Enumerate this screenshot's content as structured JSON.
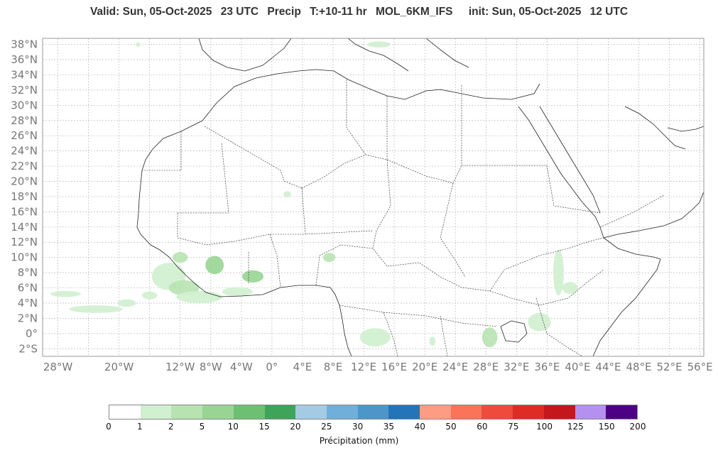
{
  "header": {
    "valid": "Valid: Sun, 05-Oct-2025",
    "valid_time": "23 UTC",
    "field": "Precip",
    "lead": "T:+10-11 hr",
    "model": "MOL_6KM_IFS",
    "init": "init: Sun, 05-Oct-2025",
    "init_time": "12 UTC"
  },
  "map": {
    "lat_labels": [
      "38°N",
      "36°N",
      "34°N",
      "32°N",
      "30°N",
      "28°N",
      "26°N",
      "24°N",
      "22°N",
      "20°N",
      "18°N",
      "16°N",
      "14°N",
      "12°N",
      "10°N",
      "8°N",
      "6°N",
      "4°N",
      "2°N",
      "0°",
      "2°S"
    ],
    "lon_labels": [
      "28°W",
      "20°W",
      "12°W",
      "8°W",
      "4°W",
      "0°",
      "4°E",
      "8°E",
      "12°E",
      "16°E",
      "20°E",
      "24°E",
      "28°E",
      "32°E",
      "36°E",
      "40°E",
      "44°E",
      "48°E",
      "52°E",
      "56°E"
    ],
    "lat_values": [
      38,
      36,
      34,
      32,
      30,
      28,
      26,
      24,
      22,
      20,
      18,
      16,
      14,
      12,
      10,
      8,
      6,
      4,
      2,
      0,
      -2
    ],
    "lon_values": [
      -28,
      -20,
      -12,
      -8,
      -4,
      0,
      4,
      8,
      12,
      16,
      20,
      24,
      28,
      32,
      36,
      40,
      44,
      48,
      52,
      56
    ],
    "extent": {
      "lon_min": -30,
      "lon_max": 56.5,
      "lat_min": -3,
      "lat_max": 38.8
    },
    "precip_areas": [
      {
        "lon": -13.5,
        "lat": 7.5,
        "rx": 2.2,
        "ry": 1.8,
        "level": 1
      },
      {
        "lon": -11.5,
        "lat": 6.0,
        "rx": 2.0,
        "ry": 1.0,
        "level": 2
      },
      {
        "lon": -9.5,
        "lat": 4.8,
        "rx": 3.0,
        "ry": 0.8,
        "level": 1
      },
      {
        "lon": -7.5,
        "lat": 9.0,
        "rx": 1.2,
        "ry": 1.2,
        "level": 3
      },
      {
        "lon": -12.0,
        "lat": 10.0,
        "rx": 1.0,
        "ry": 0.7,
        "level": 2
      },
      {
        "lon": -2.5,
        "lat": 7.5,
        "rx": 1.4,
        "ry": 0.8,
        "level": 3
      },
      {
        "lon": -4.5,
        "lat": 5.5,
        "rx": 2.0,
        "ry": 0.6,
        "level": 1
      },
      {
        "lon": 7.5,
        "lat": 10.0,
        "rx": 0.8,
        "ry": 0.6,
        "level": 2
      },
      {
        "lon": 2.0,
        "lat": 18.3,
        "rx": 0.5,
        "ry": 0.4,
        "level": 1
      },
      {
        "lon": -23.0,
        "lat": 3.2,
        "rx": 3.5,
        "ry": 0.5,
        "level": 1
      },
      {
        "lon": -27.0,
        "lat": 5.2,
        "rx": 2.0,
        "ry": 0.4,
        "level": 1
      },
      {
        "lon": -19.0,
        "lat": 4.0,
        "rx": 1.2,
        "ry": 0.5,
        "level": 1
      },
      {
        "lon": -16.0,
        "lat": 5.0,
        "rx": 1.0,
        "ry": 0.5,
        "level": 1
      },
      {
        "lon": 13.5,
        "lat": -0.5,
        "rx": 2.0,
        "ry": 1.2,
        "level": 1
      },
      {
        "lon": 28.5,
        "lat": -0.5,
        "rx": 1.0,
        "ry": 1.3,
        "level": 2
      },
      {
        "lon": 35.0,
        "lat": 1.5,
        "rx": 1.5,
        "ry": 1.2,
        "level": 1
      },
      {
        "lon": 37.5,
        "lat": 8.0,
        "rx": 0.7,
        "ry": 3.0,
        "level": 1
      },
      {
        "lon": 39.0,
        "lat": 6.0,
        "rx": 1.0,
        "ry": 0.8,
        "level": 1
      },
      {
        "lon": 21.0,
        "lat": -1.0,
        "rx": 0.4,
        "ry": 0.6,
        "level": 1
      },
      {
        "lon": 14.0,
        "lat": 38.0,
        "rx": 1.5,
        "ry": 0.4,
        "level": 1
      },
      {
        "lon": -17.5,
        "lat": 38.0,
        "rx": 0.3,
        "ry": 0.3,
        "level": 1
      }
    ]
  },
  "colorbar": {
    "levels": [
      "0",
      "1",
      "2",
      "5",
      "10",
      "15",
      "20",
      "25",
      "30",
      "35",
      "40",
      "50",
      "60",
      "75",
      "100",
      "125",
      "150",
      "200"
    ],
    "colors": [
      "#ffffff",
      "#d0f0cf",
      "#b7e3b1",
      "#98d594",
      "#6dc072",
      "#3da45a",
      "#a4cbe3",
      "#6fafd9",
      "#4c97c8",
      "#2474b8",
      "#fc9c82",
      "#f97459",
      "#ef4b3c",
      "#de2b26",
      "#c3171c",
      "#b491ef",
      "#4e0084"
    ],
    "title": "Précipitation (mm)"
  }
}
